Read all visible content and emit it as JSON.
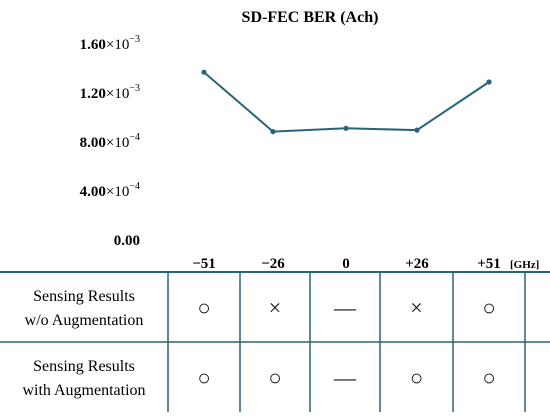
{
  "chart_data": {
    "type": "line",
    "title": "SD-FEC BER (Ach)",
    "xlabel": "",
    "ylabel": "",
    "x_unit": "[GHz]",
    "categories": [
      "−51",
      "−26",
      "0",
      "+26",
      "+51"
    ],
    "series": [
      {
        "values": [
          0.00137,
          0.000885,
          0.000912,
          0.000897,
          0.00129
        ]
      }
    ],
    "ylim": [
      0,
      0.0016
    ],
    "y_ticks": [
      {
        "value": 0.0016,
        "mantissa": "1.60",
        "exponent": "−3"
      },
      {
        "value": 0.0012,
        "mantissa": "1.20",
        "exponent": "−3"
      },
      {
        "value": 0.0008,
        "mantissa": "8.00",
        "exponent": "−4"
      },
      {
        "value": 0.0004,
        "mantissa": "4.00",
        "exponent": "−4"
      },
      {
        "value": 0,
        "mantissa": "0.00",
        "exponent": ""
      }
    ],
    "tick_times": "×",
    "tick_base": "10",
    "grid": false,
    "line_color": "#2a6478"
  },
  "table": {
    "line_color": "#2a6478",
    "rows": [
      {
        "label_lines": [
          "Sensing Results",
          "w/o Augmentation"
        ],
        "cells": [
          "○",
          "×",
          "—",
          "×",
          "○"
        ]
      },
      {
        "label_lines": [
          "Sensing Results",
          "with Augmentation"
        ],
        "cells": [
          "○",
          "○",
          "—",
          "○",
          "○"
        ]
      }
    ]
  }
}
